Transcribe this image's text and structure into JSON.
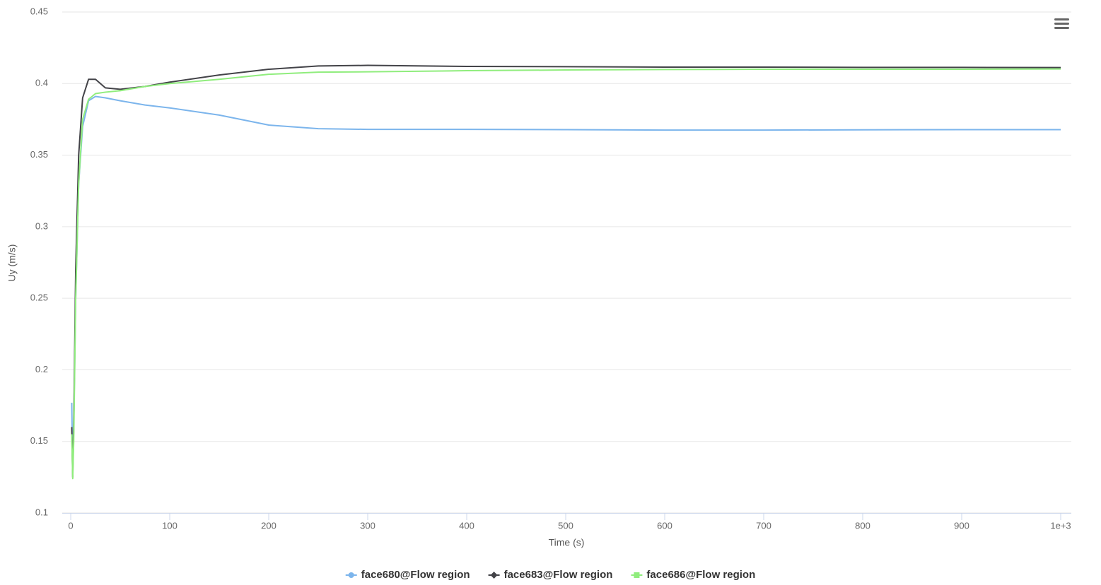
{
  "chart_data": {
    "type": "line",
    "x_label": "Time (s)",
    "y_label": "Uy (m/s)",
    "x": [
      1,
      2,
      3,
      5,
      8,
      12,
      18,
      25,
      35,
      50,
      75,
      100,
      150,
      200,
      250,
      300,
      400,
      500,
      600,
      700,
      800,
      900,
      1000
    ],
    "series": [
      {
        "name": "face680@Flow region",
        "color": "#7cb5ec",
        "marker": "circle",
        "values": [
          0.177,
          0.13,
          0.16,
          0.25,
          0.33,
          0.37,
          0.388,
          0.391,
          0.39,
          0.388,
          0.385,
          0.383,
          0.378,
          0.371,
          0.3685,
          0.368,
          0.368,
          0.3678,
          0.3675,
          0.3675,
          0.3677,
          0.3678,
          0.3678
        ]
      },
      {
        "name": "face683@Flow region",
        "color": "#434348",
        "marker": "diamond",
        "values": [
          0.16,
          0.125,
          0.16,
          0.27,
          0.35,
          0.39,
          0.403,
          0.403,
          0.397,
          0.396,
          0.398,
          0.401,
          0.406,
          0.41,
          0.4123,
          0.4127,
          0.412,
          0.4118,
          0.4115,
          0.4115,
          0.4113,
          0.4113,
          0.4112
        ]
      },
      {
        "name": "face686@Flow region",
        "color": "#90ed7d",
        "marker": "square",
        "values": [
          0.155,
          0.124,
          0.15,
          0.25,
          0.33,
          0.375,
          0.389,
          0.393,
          0.394,
          0.395,
          0.398,
          0.4,
          0.403,
          0.4065,
          0.408,
          0.4082,
          0.409,
          0.4095,
          0.4098,
          0.41,
          0.41,
          0.41,
          0.4102
        ]
      }
    ],
    "xlim": [
      -8.6,
      1010.7
    ],
    "xticks": [
      0,
      100,
      200,
      300,
      400,
      500,
      600,
      700,
      800,
      900,
      {
        "value": 1000,
        "label": "1e+3"
      }
    ],
    "ylim": [
      0.1,
      0.45
    ],
    "yticks": [
      0.1,
      0.15,
      0.2,
      0.25,
      0.3,
      0.35,
      0.4,
      0.45
    ],
    "grid": true,
    "legend": "bottom"
  }
}
